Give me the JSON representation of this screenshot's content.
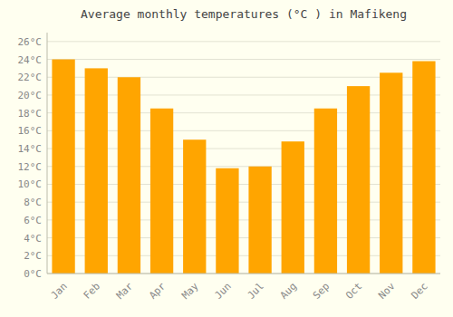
{
  "chart_data": {
    "type": "bar",
    "title": "Average monthly temperatures (°C ) in Mafikeng",
    "categories": [
      "Jan",
      "Feb",
      "Mar",
      "Apr",
      "May",
      "Jun",
      "Jul",
      "Aug",
      "Sep",
      "Oct",
      "Nov",
      "Dec"
    ],
    "values": [
      24.0,
      23.0,
      22.0,
      18.5,
      15.0,
      11.8,
      12.0,
      14.8,
      18.5,
      21.0,
      22.5,
      23.8
    ],
    "color": "#FFA500",
    "ylim": [
      0,
      27
    ],
    "yticks": [
      {
        "value": 0,
        "label": "0°C"
      },
      {
        "value": 2,
        "label": "2°C"
      },
      {
        "value": 4,
        "label": "4°C"
      },
      {
        "value": 6,
        "label": "6°C"
      },
      {
        "value": 8,
        "label": "8°C"
      },
      {
        "value": 10,
        "label": "10°C"
      },
      {
        "value": 12,
        "label": "12°C"
      },
      {
        "value": 14,
        "label": "14°C"
      },
      {
        "value": 16,
        "label": "16°C"
      },
      {
        "value": 18,
        "label": "18°C"
      },
      {
        "value": 20,
        "label": "20°C"
      },
      {
        "value": 22,
        "label": "22°C"
      },
      {
        "value": 24,
        "label": "24°C"
      },
      {
        "value": 26,
        "label": "26°C"
      }
    ],
    "grid": true
  }
}
